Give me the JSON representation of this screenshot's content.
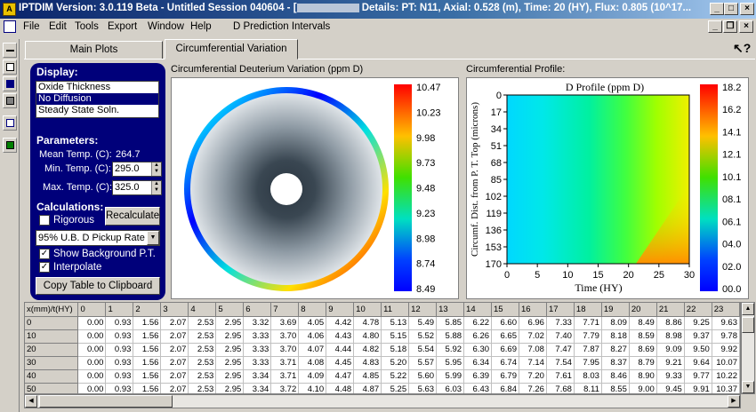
{
  "titlebar": {
    "title_start": "IPTDIM Version: 3.0.119 Beta - Untitled Session 040604 - [",
    "title_end": " Details: PT: N11, Axial: 0.528 (m), Time: 20 (HY), Flux: 0.805 (10^17...",
    "min": "_",
    "max": "□",
    "close": "×"
  },
  "menu": {
    "items": [
      "File",
      "Edit",
      "Tools",
      "Export",
      "Window",
      "Help",
      "D Prediction Intervals"
    ],
    "child_min": "_",
    "child_restore": "❐",
    "child_close": "×"
  },
  "tabs": [
    "Main Plots",
    "Circumferential Variation"
  ],
  "display": {
    "heading": "Display:",
    "options": [
      "Oxide Thickness",
      "No Diffusion",
      "Steady State Soln."
    ],
    "selected": "No Diffusion"
  },
  "parameters": {
    "heading": "Parameters:",
    "mean_temp_label": "Mean Temp. (C):",
    "mean_temp_value": "264.7",
    "min_temp_label": "Min. Temp. (C):",
    "min_temp_value": "295.0",
    "max_temp_label": "Max. Temp. (C):",
    "max_temp_value": "325.0"
  },
  "calculations": {
    "heading": "Calculations:",
    "rigorous_label": "Rigorous",
    "rigorous_checked": false,
    "recalculate_label": "Recalculate",
    "pickup_value": "95% U.B. D Pickup Rate",
    "show_bg_label": "Show Background P.T.",
    "show_bg_checked": true,
    "interpolate_label": "Interpolate",
    "interpolate_checked": true,
    "copy_label": "Copy Table to Clipboard"
  },
  "left_plot": {
    "title": "Circumferential Deuterium Variation (ppm D)",
    "scale": [
      "10.47",
      "10.23",
      "9.98",
      "9.73",
      "9.48",
      "9.23",
      "8.98",
      "8.74",
      "8.49"
    ]
  },
  "right_plot": {
    "title": "Circumferential Profile:",
    "plot_title": "D Profile (ppm D)",
    "xlabel": "Time (HY)",
    "ylabel": "Circumf. Dist. from P. T. Top (microns)",
    "yticks": [
      "0",
      "17",
      "34",
      "51",
      "68",
      "85",
      "102",
      "119",
      "136",
      "153",
      "170"
    ],
    "xticks": [
      "0",
      "5",
      "10",
      "15",
      "20",
      "25",
      "30"
    ],
    "scale": [
      "18.2",
      "16.2",
      "14.1",
      "12.1",
      "10.1",
      "08.1",
      "06.1",
      "04.0",
      "02.0",
      "00.0"
    ]
  },
  "table": {
    "corner": "x(mm)/t(HY)",
    "columns": [
      "0",
      "1",
      "2",
      "3",
      "4",
      "5",
      "6",
      "7",
      "8",
      "9",
      "10",
      "11",
      "12",
      "13",
      "14",
      "15",
      "16",
      "17",
      "18",
      "19",
      "20",
      "21",
      "22",
      "23"
    ],
    "rows": [
      {
        "x": "0",
        "v": [
          "0.00",
          "0.93",
          "1.56",
          "2.07",
          "2.53",
          "2.95",
          "3.32",
          "3.69",
          "4.05",
          "4.42",
          "4.78",
          "5.13",
          "5.49",
          "5.85",
          "6.22",
          "6.60",
          "6.96",
          "7.33",
          "7.71",
          "8.09",
          "8.49",
          "8.86",
          "9.25",
          "9.63"
        ]
      },
      {
        "x": "10",
        "v": [
          "0.00",
          "0.93",
          "1.56",
          "2.07",
          "2.53",
          "2.95",
          "3.33",
          "3.70",
          "4.06",
          "4.43",
          "4.80",
          "5.15",
          "5.52",
          "5.88",
          "6.26",
          "6.65",
          "7.02",
          "7.40",
          "7.79",
          "8.18",
          "8.59",
          "8.98",
          "9.37",
          "9.78"
        ]
      },
      {
        "x": "20",
        "v": [
          "0.00",
          "0.93",
          "1.56",
          "2.07",
          "2.53",
          "2.95",
          "3.33",
          "3.70",
          "4.07",
          "4.44",
          "4.82",
          "5.18",
          "5.54",
          "5.92",
          "6.30",
          "6.69",
          "7.08",
          "7.47",
          "7.87",
          "8.27",
          "8.69",
          "9.09",
          "9.50",
          "9.92"
        ]
      },
      {
        "x": "30",
        "v": [
          "0.00",
          "0.93",
          "1.56",
          "2.07",
          "2.53",
          "2.95",
          "3.33",
          "3.71",
          "4.08",
          "4.45",
          "4.83",
          "5.20",
          "5.57",
          "5.95",
          "6.34",
          "6.74",
          "7.14",
          "7.54",
          "7.95",
          "8.37",
          "8.79",
          "9.21",
          "9.64",
          "10.07"
        ]
      },
      {
        "x": "40",
        "v": [
          "0.00",
          "0.93",
          "1.56",
          "2.07",
          "2.53",
          "2.95",
          "3.34",
          "3.71",
          "4.09",
          "4.47",
          "4.85",
          "5.22",
          "5.60",
          "5.99",
          "6.39",
          "6.79",
          "7.20",
          "7.61",
          "8.03",
          "8.46",
          "8.90",
          "9.33",
          "9.77",
          "10.22"
        ]
      },
      {
        "x": "50",
        "v": [
          "0.00",
          "0.93",
          "1.56",
          "2.07",
          "2.53",
          "2.95",
          "3.34",
          "3.72",
          "4.10",
          "4.48",
          "4.87",
          "5.25",
          "5.63",
          "6.03",
          "6.43",
          "6.84",
          "7.26",
          "7.68",
          "8.11",
          "8.55",
          "9.00",
          "9.45",
          "9.91",
          "10.37"
        ]
      }
    ]
  }
}
